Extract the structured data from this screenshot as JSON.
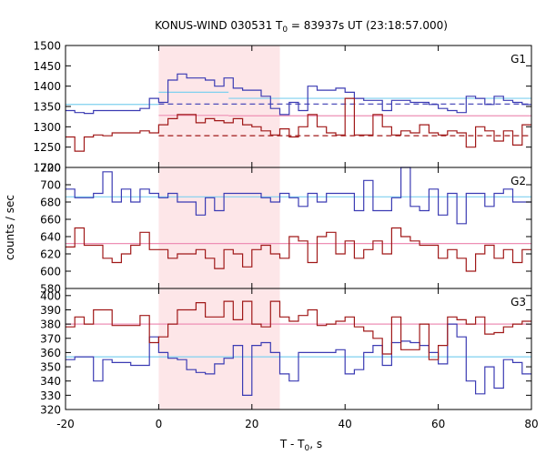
{
  "chart_data": {
    "type": "line",
    "title_prefix": "KONUS-WIND 030531 T",
    "title_sub": "0",
    "title_suffix": " = 83937s UT (23:18:57.000)",
    "xlabel_prefix": "T - T",
    "xlabel_sub": "0",
    "xlabel_suffix": ", s",
    "ylabel": "counts / sec",
    "xlim": [
      -20,
      80
    ],
    "x_ticks": [
      -20,
      0,
      20,
      40,
      60,
      80
    ],
    "shaded_interval": [
      0,
      26
    ],
    "shade_color": "#fde6e8",
    "colors": {
      "blue": "#3b3bb3",
      "red": "#a01818",
      "cyan": "#7fd0ef",
      "pink": "#ee8fb5"
    },
    "bin_edges": [
      -20,
      -18,
      -16,
      -14,
      -12,
      -10,
      -8,
      -6,
      -4,
      -2,
      0,
      2,
      4,
      6,
      8,
      10,
      12,
      14,
      16,
      18,
      20,
      22,
      24,
      26,
      28,
      30,
      32,
      34,
      36,
      38,
      40,
      42,
      44,
      46,
      48,
      50,
      52,
      54,
      56,
      58,
      60,
      62,
      64,
      66,
      68,
      70,
      72,
      74,
      76,
      78,
      80
    ],
    "panels": [
      {
        "label": "G1",
        "ylim": [
          1200,
          1500
        ],
        "y_ticks": [
          1200,
          1250,
          1300,
          1350,
          1400,
          1450,
          1500
        ],
        "series": [
          {
            "color": "blue",
            "values": [
              1340,
              1335,
              1333,
              1340,
              1340,
              1340,
              1340,
              1340,
              1345,
              1370,
              1360,
              1415,
              1430,
              1420,
              1420,
              1415,
              1400,
              1420,
              1395,
              1390,
              1390,
              1375,
              1345,
              1330,
              1360,
              1340,
              1400,
              1390,
              1390,
              1395,
              1385,
              1370,
              1365,
              1365,
              1340,
              1365,
              1365,
              1360,
              1360,
              1355,
              1345,
              1340,
              1335,
              1375,
              1370,
              1355,
              1375,
              1365,
              1360,
              1355
            ]
          },
          {
            "color": "red",
            "values": [
              1275,
              1240,
              1275,
              1280,
              1278,
              1285,
              1285,
              1285,
              1290,
              1285,
              1305,
              1320,
              1330,
              1330,
              1310,
              1320,
              1315,
              1310,
              1320,
              1305,
              1300,
              1290,
              1280,
              1295,
              1275,
              1300,
              1330,
              1300,
              1285,
              1280,
              1370,
              1280,
              1280,
              1330,
              1300,
              1280,
              1290,
              1285,
              1305,
              1285,
              1280,
              1290,
              1285,
              1250,
              1300,
              1290,
              1265,
              1290,
              1255,
              1305
            ]
          }
        ],
        "fits": [
          {
            "color": "cyan",
            "style": "solid",
            "segments": [
              [
                -20,
                0,
                1355
              ],
              [
                0,
                15,
                1385
              ],
              [
                15,
                80,
                1370
              ]
            ]
          },
          {
            "color": "blue",
            "style": "dashed",
            "segments": [
              [
                0,
                80,
                1356
              ]
            ]
          },
          {
            "color": "pink",
            "style": "solid",
            "segments": [
              [
                0,
                15,
                1328
              ],
              [
                15,
                80,
                1327
              ]
            ]
          },
          {
            "color": "red",
            "style": "dashed",
            "segments": [
              [
                0,
                80,
                1278
              ]
            ]
          }
        ]
      },
      {
        "label": "G2",
        "ylim": [
          580,
          720
        ],
        "y_ticks": [
          580,
          600,
          620,
          640,
          660,
          680,
          700,
          720
        ],
        "series": [
          {
            "color": "blue",
            "values": [
              695,
              685,
              685,
              690,
              715,
              680,
              695,
              680,
              695,
              690,
              685,
              690,
              680,
              680,
              665,
              685,
              670,
              690,
              690,
              690,
              690,
              685,
              680,
              690,
              685,
              675,
              690,
              680,
              690,
              690,
              690,
              670,
              705,
              670,
              670,
              685,
              720,
              675,
              670,
              695,
              665,
              690,
              655,
              690,
              690,
              675,
              690,
              695,
              680,
              680
            ]
          },
          {
            "color": "red",
            "values": [
              628,
              650,
              630,
              630,
              615,
              610,
              620,
              630,
              645,
              625,
              625,
              615,
              620,
              620,
              625,
              615,
              603,
              625,
              620,
              605,
              625,
              630,
              620,
              615,
              640,
              635,
              610,
              640,
              645,
              620,
              635,
              615,
              625,
              635,
              620,
              650,
              640,
              635,
              630,
              630,
              615,
              625,
              615,
              600,
              620,
              630,
              615,
              625,
              610,
              625
            ]
          }
        ],
        "fits": [
          {
            "color": "cyan",
            "style": "solid",
            "segments": [
              [
                -20,
                80,
                686
              ]
            ]
          },
          {
            "color": "pink",
            "style": "solid",
            "segments": [
              [
                -20,
                80,
                632
              ]
            ]
          }
        ]
      },
      {
        "label": "G3",
        "ylim": [
          320,
          405
        ],
        "y_ticks": [
          320,
          330,
          340,
          350,
          360,
          370,
          380,
          390,
          400
        ],
        "series": [
          {
            "color": "blue",
            "values": [
              355,
              357,
              357,
              340,
              355,
              353,
              353,
              351,
              351,
              371,
              360,
              356,
              355,
              348,
              346,
              345,
              352,
              356,
              365,
              330,
              365,
              367,
              360,
              345,
              340,
              360,
              360,
              360,
              360,
              362,
              345,
              348,
              360,
              365,
              351,
              367,
              368,
              367,
              365,
              360,
              352,
              380,
              371,
              340,
              331,
              350,
              335,
              355,
              353,
              345
            ]
          },
          {
            "color": "red",
            "values": [
              378,
              385,
              380,
              390,
              390,
              379,
              379,
              379,
              386,
              367,
              371,
              380,
              390,
              390,
              395,
              385,
              385,
              396,
              383,
              396,
              380,
              378,
              396,
              385,
              382,
              386,
              390,
              379,
              380,
              382,
              385,
              378,
              375,
              370,
              359,
              385,
              362,
              362,
              380,
              355,
              365,
              385,
              383,
              380,
              385,
              373,
              374,
              378,
              380,
              382
            ]
          }
        ],
        "fits": [
          {
            "color": "cyan",
            "style": "solid",
            "segments": [
              [
                -20,
                80,
                357
              ]
            ]
          },
          {
            "color": "pink",
            "style": "solid",
            "segments": [
              [
                -20,
                80,
                380
              ]
            ]
          }
        ]
      }
    ]
  }
}
